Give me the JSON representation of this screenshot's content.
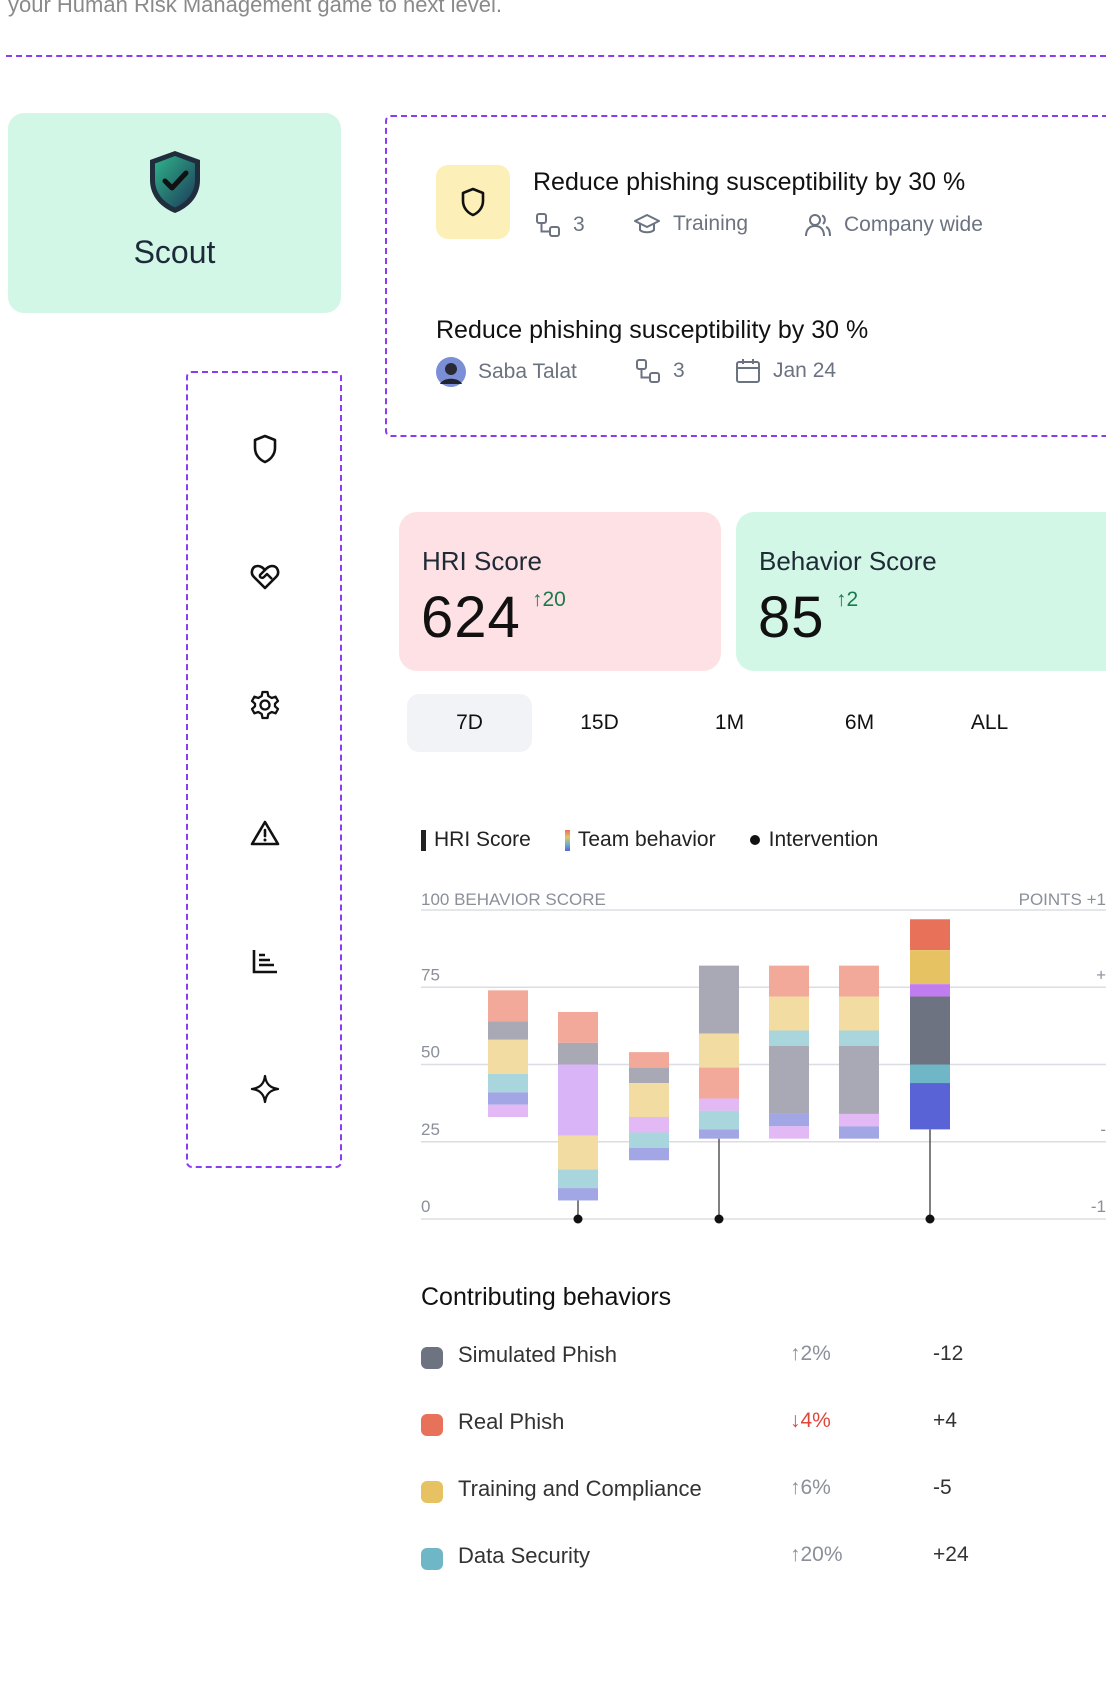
{
  "intro": {
    "text": "your Human Risk Management game to next level."
  },
  "scout": {
    "name": "Scout"
  },
  "goals": [
    {
      "title": "Reduce phishing susceptibility by 30 %",
      "steps": "3",
      "type": "Training",
      "audience": "Company wide"
    },
    {
      "title": "Reduce phishing susceptibility by 30 %",
      "owner": "Saba Talat",
      "steps": "3",
      "date": "Jan 24"
    }
  ],
  "sidebar": {
    "items": [
      {
        "icon": "shield-icon",
        "bg": "#fde1e4"
      },
      {
        "icon": "heart-handshake-icon",
        "bg": "#dce9fe"
      },
      {
        "icon": "gear-icon",
        "bg": "#feead6"
      },
      {
        "icon": "warning-icon",
        "bg": "#d3f7e6"
      },
      {
        "icon": "bar-chart-icon",
        "bg": "#e6e7ec"
      },
      {
        "icon": "sparkle-icon",
        "bg": "#f4e6fd"
      }
    ]
  },
  "scores": {
    "hri": {
      "label": "HRI Score",
      "value": "624",
      "delta": "↑20",
      "bg": "#fee1e4"
    },
    "behavior": {
      "label": "Behavior Score",
      "value": "85",
      "delta": "↑2",
      "bg": "#d3f7e6"
    }
  },
  "ranges": [
    "7D",
    "15D",
    "1M",
    "6M",
    "ALL"
  ],
  "active_range": "7D",
  "legend": {
    "hri": "HRI Score",
    "team": "Team behavior",
    "intervention": "Intervention"
  },
  "chart_data": {
    "type": "bar",
    "stacked": true,
    "left_axis_label": "100 BEHAVIOR SCORE",
    "right_axis_label": "POINTS +1",
    "y_ticks": [
      "75",
      "50",
      "25",
      "0"
    ],
    "right_ticks": [
      "+",
      "-",
      "-1"
    ],
    "ylim": [
      0,
      100
    ],
    "grid": true,
    "colors": {
      "salmon": "#f2a99a",
      "gray": "#a9a9b5",
      "yellow": "#f3dca2",
      "teal": "#a9d5dc",
      "blue": "#a3a6e5",
      "lilac": "#e2b8f5",
      "purple": "#d9b4f6",
      "red": "#e8715a",
      "gold": "#e7c263",
      "violet": "#c17df0",
      "slate": "#6e7382",
      "cyan": "#6fb6c7",
      "indigo": "#5a63d6"
    },
    "bars": [
      {
        "segments": [
          {
            "from": 74,
            "to": 64,
            "c": "salmon"
          },
          {
            "from": 64,
            "to": 58,
            "c": "gray"
          },
          {
            "from": 58,
            "to": 47,
            "c": "yellow"
          },
          {
            "from": 47,
            "to": 41,
            "c": "teal"
          },
          {
            "from": 41,
            "to": 37,
            "c": "blue"
          },
          {
            "from": 37,
            "to": 33,
            "c": "lilac"
          }
        ],
        "intervention": false
      },
      {
        "segments": [
          {
            "from": 67,
            "to": 57,
            "c": "salmon"
          },
          {
            "from": 57,
            "to": 50,
            "c": "gray"
          },
          {
            "from": 50,
            "to": 27,
            "c": "purple"
          },
          {
            "from": 27,
            "to": 16,
            "c": "yellow"
          },
          {
            "from": 16,
            "to": 10,
            "c": "teal"
          },
          {
            "from": 10,
            "to": 6,
            "c": "blue"
          }
        ],
        "intervention": true
      },
      {
        "segments": [
          {
            "from": 54,
            "to": 49,
            "c": "salmon"
          },
          {
            "from": 49,
            "to": 44,
            "c": "gray"
          },
          {
            "from": 44,
            "to": 33,
            "c": "yellow"
          },
          {
            "from": 33,
            "to": 28,
            "c": "lilac"
          },
          {
            "from": 28,
            "to": 23,
            "c": "teal"
          },
          {
            "from": 23,
            "to": 19,
            "c": "blue"
          }
        ],
        "intervention": false
      },
      {
        "segments": [
          {
            "from": 82,
            "to": 60,
            "c": "gray"
          },
          {
            "from": 60,
            "to": 49,
            "c": "yellow"
          },
          {
            "from": 49,
            "to": 39,
            "c": "salmon"
          },
          {
            "from": 39,
            "to": 35,
            "c": "lilac"
          },
          {
            "from": 35,
            "to": 29,
            "c": "teal"
          },
          {
            "from": 29,
            "to": 26,
            "c": "blue"
          }
        ],
        "intervention": true
      },
      {
        "segments": [
          {
            "from": 82,
            "to": 72,
            "c": "salmon"
          },
          {
            "from": 72,
            "to": 61,
            "c": "yellow"
          },
          {
            "from": 61,
            "to": 56,
            "c": "teal"
          },
          {
            "from": 56,
            "to": 34,
            "c": "gray"
          },
          {
            "from": 34,
            "to": 30,
            "c": "blue"
          },
          {
            "from": 30,
            "to": 26,
            "c": "lilac"
          }
        ],
        "intervention": false
      },
      {
        "segments": [
          {
            "from": 82,
            "to": 72,
            "c": "salmon"
          },
          {
            "from": 72,
            "to": 61,
            "c": "yellow"
          },
          {
            "from": 61,
            "to": 56,
            "c": "teal"
          },
          {
            "from": 56,
            "to": 34,
            "c": "gray"
          },
          {
            "from": 34,
            "to": 30,
            "c": "lilac"
          },
          {
            "from": 30,
            "to": 26,
            "c": "blue"
          }
        ],
        "intervention": false
      },
      {
        "segments": [
          {
            "from": 97,
            "to": 87,
            "c": "red"
          },
          {
            "from": 87,
            "to": 76,
            "c": "gold"
          },
          {
            "from": 76,
            "to": 72,
            "c": "violet"
          },
          {
            "from": 72,
            "to": 50,
            "c": "slate"
          },
          {
            "from": 50,
            "to": 44,
            "c": "cyan"
          },
          {
            "from": 44,
            "to": 29,
            "c": "indigo"
          }
        ],
        "intervention": true
      }
    ]
  },
  "contributing": {
    "title": "Contributing behaviors",
    "rows": [
      {
        "name": "Simulated Phish",
        "change": "↑2%",
        "points": "-12",
        "color": "#6e7382",
        "trend": "up"
      },
      {
        "name": "Real Phish",
        "change": "↓4%",
        "points": "+4",
        "color": "#e8715a",
        "trend": "down"
      },
      {
        "name": "Training and Compliance",
        "change": "↑6%",
        "points": "-5",
        "color": "#e7c263",
        "trend": "up"
      },
      {
        "name": "Data Security",
        "change": "↑20%",
        "points": "+24",
        "color": "#6fb6c7",
        "trend": "up"
      }
    ]
  }
}
